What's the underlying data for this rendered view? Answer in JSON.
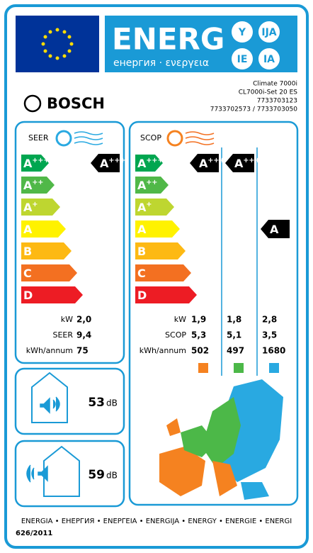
{
  "header": {
    "energy": "ENERG",
    "subtitle": "енергия · ενεργεια",
    "suffixes": [
      "Y",
      "IJA",
      "IE",
      "IA"
    ]
  },
  "brand": "BOSCH",
  "model": [
    "Climate 7000i",
    "CL7000i-Set 20 ES",
    "7733703123",
    "7733702573 / 7733703050"
  ],
  "classes": [
    {
      "letter": "A",
      "sup": "+++",
      "color": "#00a650"
    },
    {
      "letter": "A",
      "sup": "++",
      "color": "#50b848"
    },
    {
      "letter": "A",
      "sup": "+",
      "color": "#bed630"
    },
    {
      "letter": "A",
      "color": "#fff200"
    },
    {
      "letter": "B",
      "color": "#fdb913"
    },
    {
      "letter": "C",
      "color": "#f37021"
    },
    {
      "letter": "D",
      "color": "#ed1c24"
    }
  ],
  "cooling": {
    "label": "SEER",
    "class": {
      "letter": "A",
      "sup": "+++"
    },
    "rows": [
      {
        "label": "kW",
        "value": "2,0"
      },
      {
        "label": "SEER",
        "value": "9,4"
      },
      {
        "label": "kWh/annum",
        "value": "75"
      }
    ]
  },
  "heating": {
    "label": "SCOP",
    "row_labels": [
      "kW",
      "SCOP",
      "kWh/annum"
    ],
    "zones": [
      {
        "color": "#f58220",
        "class": {
          "letter": "A",
          "sup": "+++"
        },
        "values": [
          "1,9",
          "5,3",
          "502"
        ]
      },
      {
        "color": "#4cb848",
        "class": {
          "letter": "A",
          "sup": "+++"
        },
        "values": [
          "1,8",
          "5,1",
          "497"
        ]
      },
      {
        "color": "#29a9e1",
        "class": {
          "letter": "A"
        },
        "values": [
          "2,8",
          "3,5",
          "1680"
        ]
      }
    ]
  },
  "noise": [
    {
      "value": "53",
      "unit": "dB"
    },
    {
      "value": "59",
      "unit": "dB"
    }
  ],
  "footer": {
    "languages": "ENERGIA • ЕНЕРГИЯ • ΕΝΕΡΓΕΙΑ • ENERGIJA • ENERGY • ENERGIE • ENERGI",
    "regulation": "626/2011"
  }
}
